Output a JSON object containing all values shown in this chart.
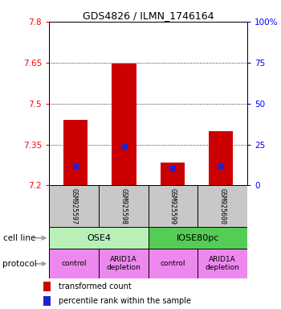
{
  "title": "GDS4826 / ILMN_1746164",
  "samples": [
    "GSM925597",
    "GSM925598",
    "GSM925599",
    "GSM925600"
  ],
  "red_bar_tops": [
    7.44,
    7.645,
    7.285,
    7.4
  ],
  "blue_marker_vals": [
    7.272,
    7.342,
    7.262,
    7.272
  ],
  "ymin": 7.2,
  "ymax": 7.8,
  "yticks_left": [
    7.2,
    7.35,
    7.5,
    7.65,
    7.8
  ],
  "yticks_right_pct": [
    0,
    25,
    50,
    75,
    100
  ],
  "bar_width": 0.5,
  "bar_color": "#cc0000",
  "blue_color": "#2222cc",
  "cell_line_groups": [
    {
      "label": "OSE4",
      "start": 0,
      "end": 2,
      "color": "#b8f0b8"
    },
    {
      "label": "IOSE80pc",
      "start": 2,
      "end": 4,
      "color": "#55cc55"
    }
  ],
  "protocols": [
    "control",
    "ARID1A\ndepletion",
    "control",
    "ARID1A\ndepletion"
  ],
  "protocol_color": "#ee88ee",
  "sample_box_color": "#c8c8c8",
  "legend_red_label": "transformed count",
  "legend_blue_label": "percentile rank within the sample",
  "arrow_color": "#999999",
  "cell_line_label": "cell line",
  "protocol_label": "protocol",
  "title_fontsize": 9,
  "tick_fontsize": 7.5,
  "sample_fontsize": 6,
  "cell_fontsize": 8,
  "proto_fontsize": 6.5,
  "legend_fontsize": 7,
  "label_fontsize": 7.5
}
